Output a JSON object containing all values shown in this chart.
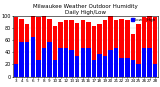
{
  "title": "Milwaukee Weather Outdoor Humidity",
  "subtitle": "Daily High/Low",
  "bar_width": 0.8,
  "background_color": "#ffffff",
  "high_color": "#ff0000",
  "low_color": "#0000ff",
  "ylim": [
    0,
    100
  ],
  "ylabel_fontsize": 3.5,
  "xlabel_fontsize": 3.0,
  "title_fontsize": 4.0,
  "legend_fontsize": 3.0,
  "categories": [
    "3",
    "4",
    "5",
    "6",
    "7",
    "8",
    "9",
    "10",
    "11",
    "12",
    "13",
    "14",
    "15",
    "16",
    "17",
    "18",
    "19",
    "20",
    "21",
    "22",
    "23",
    "24",
    "25",
    "26",
    "27",
    "28"
  ],
  "highs": [
    97,
    95,
    86,
    100,
    97,
    100,
    95,
    83,
    90,
    93,
    93,
    88,
    93,
    90,
    83,
    87,
    93,
    100,
    93,
    95,
    93,
    70,
    86,
    97,
    100,
    97
  ],
  "lows": [
    20,
    57,
    57,
    65,
    28,
    47,
    57,
    28,
    47,
    47,
    43,
    33,
    47,
    47,
    28,
    37,
    33,
    43,
    47,
    30,
    30,
    28,
    20,
    47,
    47,
    20
  ],
  "yticks": [
    0,
    20,
    40,
    60,
    80,
    100
  ],
  "grid_color": "#cccccc"
}
